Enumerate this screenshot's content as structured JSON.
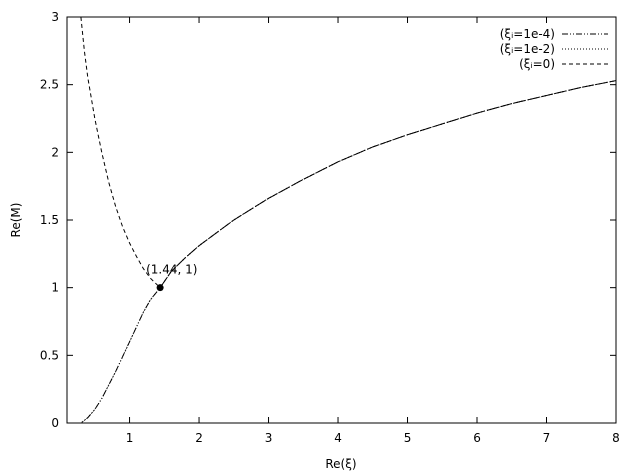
{
  "chart_data": {
    "type": "line",
    "title": "",
    "xlabel": "Re(ξ)",
    "ylabel": "Re(M)",
    "xlim": [
      0.1,
      8
    ],
    "ylim": [
      0,
      3
    ],
    "x_ticks": [
      1,
      2,
      3,
      4,
      5,
      6,
      7,
      8
    ],
    "y_ticks": [
      0,
      0.5,
      1,
      1.5,
      2,
      2.5,
      3
    ],
    "x_tick_labels": [
      "1",
      "2",
      "3",
      "4",
      "5",
      "6",
      "7",
      "8"
    ],
    "y_tick_labels": [
      "0",
      "0.5",
      "1",
      "1.5",
      "2",
      "2.5",
      "3"
    ],
    "grid": false,
    "legend_position": "top-right",
    "series": [
      {
        "name": "(ξᵢ=1e-4)",
        "style": "dash-dot-dot",
        "points": [
          [
            0.2,
            0.0
          ],
          [
            0.3,
            0.0
          ],
          [
            0.4,
            0.04
          ],
          [
            0.5,
            0.1
          ],
          [
            0.6,
            0.18
          ],
          [
            0.7,
            0.28
          ],
          [
            0.8,
            0.38
          ],
          [
            0.9,
            0.49
          ],
          [
            1.0,
            0.6
          ],
          [
            1.1,
            0.71
          ],
          [
            1.2,
            0.82
          ],
          [
            1.3,
            0.91
          ],
          [
            1.44,
            1.0
          ],
          [
            1.6,
            1.12
          ],
          [
            1.8,
            1.22
          ],
          [
            2.0,
            1.31
          ],
          [
            2.5,
            1.5
          ],
          [
            3.0,
            1.66
          ],
          [
            3.5,
            1.8
          ],
          [
            4.0,
            1.93
          ],
          [
            4.5,
            2.04
          ],
          [
            5.0,
            2.13
          ],
          [
            5.5,
            2.21
          ],
          [
            6.0,
            2.29
          ],
          [
            6.5,
            2.36
          ],
          [
            7.0,
            2.42
          ],
          [
            7.5,
            2.48
          ],
          [
            8.0,
            2.53
          ]
        ]
      },
      {
        "name": "(ξᵢ=1e-2)",
        "style": "dotted",
        "points": [
          [
            0.2,
            0.0
          ],
          [
            0.3,
            0.0
          ],
          [
            0.4,
            0.04
          ],
          [
            0.5,
            0.1
          ],
          [
            0.6,
            0.18
          ],
          [
            0.7,
            0.28
          ],
          [
            0.8,
            0.38
          ],
          [
            0.9,
            0.49
          ],
          [
            1.0,
            0.6
          ],
          [
            1.1,
            0.71
          ],
          [
            1.2,
            0.82
          ],
          [
            1.3,
            0.91
          ],
          [
            1.44,
            1.0
          ],
          [
            1.6,
            1.12
          ],
          [
            1.8,
            1.22
          ],
          [
            2.0,
            1.31
          ],
          [
            2.5,
            1.5
          ],
          [
            3.0,
            1.66
          ],
          [
            3.5,
            1.8
          ],
          [
            4.0,
            1.93
          ],
          [
            4.5,
            2.04
          ],
          [
            5.0,
            2.13
          ],
          [
            5.5,
            2.21
          ],
          [
            6.0,
            2.29
          ],
          [
            6.5,
            2.36
          ],
          [
            7.0,
            2.42
          ],
          [
            7.5,
            2.48
          ],
          [
            8.0,
            2.53
          ]
        ]
      },
      {
        "name": "(ξᵢ=0)",
        "style": "dashed",
        "points": [
          [
            0.3,
            3.0
          ],
          [
            0.35,
            2.75
          ],
          [
            0.4,
            2.55
          ],
          [
            0.5,
            2.25
          ],
          [
            0.6,
            2.0
          ],
          [
            0.7,
            1.78
          ],
          [
            0.8,
            1.6
          ],
          [
            0.9,
            1.45
          ],
          [
            1.0,
            1.33
          ],
          [
            1.1,
            1.23
          ],
          [
            1.2,
            1.14
          ],
          [
            1.3,
            1.07
          ],
          [
            1.44,
            1.0
          ],
          [
            1.6,
            1.12
          ],
          [
            1.8,
            1.22
          ],
          [
            2.0,
            1.31
          ],
          [
            2.5,
            1.5
          ],
          [
            3.0,
            1.66
          ],
          [
            3.5,
            1.8
          ],
          [
            4.0,
            1.93
          ],
          [
            4.5,
            2.04
          ],
          [
            5.0,
            2.13
          ],
          [
            5.5,
            2.21
          ],
          [
            6.0,
            2.29
          ],
          [
            6.5,
            2.36
          ],
          [
            7.0,
            2.42
          ],
          [
            7.5,
            2.48
          ],
          [
            8.0,
            2.53
          ]
        ]
      }
    ],
    "annotations": [
      {
        "x": 1.44,
        "y": 1,
        "label": "(1.44, 1)",
        "marker": "filled-circle"
      }
    ]
  }
}
